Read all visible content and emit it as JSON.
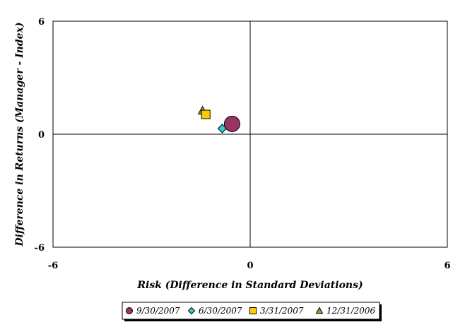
{
  "chart_data": {
    "type": "scatter",
    "title": "",
    "xlabel": "Risk (Difference in Standard Deviations)",
    "ylabel": "Difference in Returns (Manager - Index)",
    "xlim": [
      -6,
      6
    ],
    "ylim": [
      -6,
      6
    ],
    "x_ticks": [
      {
        "value": -6,
        "label": "-6"
      },
      {
        "value": 0,
        "label": "0"
      },
      {
        "value": 6,
        "label": "6"
      }
    ],
    "y_ticks": [
      {
        "value": 6,
        "label": "6"
      },
      {
        "value": 0,
        "label": "0"
      },
      {
        "value": -6,
        "label": "-6"
      }
    ],
    "quadrant_lines": {
      "x": 0,
      "y": 0
    },
    "grid": false,
    "legend_position": "bottom",
    "series": [
      {
        "name": "9/30/2007",
        "marker": "circle",
        "color": "#993366",
        "emphasized": true,
        "points": [
          {
            "x": -0.55,
            "y": 0.55
          }
        ]
      },
      {
        "name": "6/30/2007",
        "marker": "diamond",
        "color": "#33CCCC",
        "points": [
          {
            "x": -0.85,
            "y": 0.3
          }
        ]
      },
      {
        "name": "3/31/2007",
        "marker": "square",
        "color": "#FFCC00",
        "points": [
          {
            "x": -1.35,
            "y": 1.05
          }
        ]
      },
      {
        "name": "12/31/2006",
        "marker": "triangle",
        "color": "#999933",
        "points": [
          {
            "x": -1.45,
            "y": 1.25
          }
        ]
      }
    ]
  }
}
